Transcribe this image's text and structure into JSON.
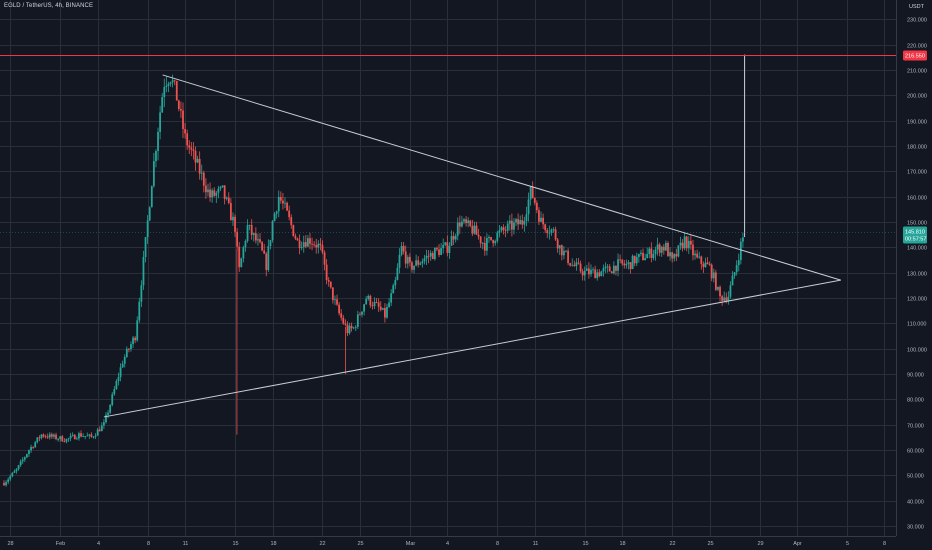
{
  "header": {
    "symbol": "EGLD / TetherUS, 4h, BINANCE",
    "currency": "USDT"
  },
  "chart_data": {
    "type": "candlestick",
    "symbol": "EGLD / TetherUS",
    "interval": "4h",
    "exchange": "BINANCE",
    "currency": "USDT",
    "ylim": [
      26,
      236
    ],
    "y_ticks": [
      230,
      220,
      210,
      200,
      190,
      180,
      170,
      160,
      150,
      140,
      130,
      120,
      110,
      100,
      90,
      80,
      70,
      60,
      50,
      40,
      30
    ],
    "x_range": [
      -0.5,
      67
    ],
    "x_ticks": [
      {
        "label": "28",
        "t": 0
      },
      {
        "label": "Feb",
        "t": 4
      },
      {
        "label": "4",
        "t": 7
      },
      {
        "label": "8",
        "t": 11
      },
      {
        "label": "11",
        "t": 14
      },
      {
        "label": "15",
        "t": 18
      },
      {
        "label": "18",
        "t": 21
      },
      {
        "label": "22",
        "t": 25
      },
      {
        "label": "25",
        "t": 28
      },
      {
        "label": "Mar",
        "t": 32
      },
      {
        "label": "4",
        "t": 35
      },
      {
        "label": "8",
        "t": 39
      },
      {
        "label": "11",
        "t": 42
      },
      {
        "label": "15",
        "t": 46
      },
      {
        "label": "18",
        "t": 49
      },
      {
        "label": "22",
        "t": 53
      },
      {
        "label": "25",
        "t": 56
      },
      {
        "label": "29",
        "t": 60
      },
      {
        "label": "Apr",
        "t": 63
      },
      {
        "label": "5",
        "t": 67
      },
      {
        "label": "8",
        "t": 70
      }
    ],
    "candle_keypoints": [
      [
        -0.5,
        47
      ],
      [
        0.5,
        52
      ],
      [
        1.5,
        60
      ],
      [
        2.5,
        66
      ],
      [
        3.5,
        65
      ],
      [
        4.5,
        64
      ],
      [
        5.5,
        66
      ],
      [
        6.5,
        65
      ],
      [
        7.5,
        70
      ],
      [
        8.0,
        78
      ],
      [
        9.0,
        95
      ],
      [
        10.0,
        105
      ],
      [
        10.8,
        140
      ],
      [
        11.3,
        165
      ],
      [
        11.9,
        190
      ],
      [
        12.3,
        205
      ],
      [
        12.8,
        208
      ],
      [
        13.3,
        200
      ],
      [
        14.0,
        183
      ],
      [
        15.0,
        172
      ],
      [
        16.0,
        160
      ],
      [
        17.0,
        162
      ],
      [
        18.0,
        148
      ],
      [
        18.3,
        130
      ],
      [
        19.0,
        148
      ],
      [
        20.0,
        140
      ],
      [
        20.5,
        133
      ],
      [
        21.0,
        150
      ],
      [
        21.5,
        160
      ],
      [
        22.0,
        155
      ],
      [
        23.0,
        142
      ],
      [
        24.0,
        143
      ],
      [
        24.8,
        140
      ],
      [
        25.5,
        125
      ],
      [
        26.3,
        114
      ],
      [
        27.0,
        107
      ],
      [
        27.5,
        108
      ],
      [
        28.5,
        120
      ],
      [
        29.5,
        116
      ],
      [
        30.0,
        113
      ],
      [
        30.8,
        125
      ],
      [
        31.3,
        140
      ],
      [
        32.0,
        132
      ],
      [
        33.0,
        135
      ],
      [
        34.0,
        138
      ],
      [
        35.0,
        140
      ],
      [
        36.0,
        150
      ],
      [
        37.0,
        147
      ],
      [
        38.0,
        141
      ],
      [
        39.0,
        145
      ],
      [
        40.0,
        148
      ],
      [
        41.0,
        150
      ],
      [
        41.7,
        162
      ],
      [
        42.0,
        158
      ],
      [
        42.5,
        150
      ],
      [
        43.5,
        146
      ],
      [
        44.0,
        140
      ],
      [
        45.0,
        133
      ],
      [
        46.0,
        130
      ],
      [
        47.0,
        130
      ],
      [
        48.0,
        131
      ],
      [
        48.5,
        133
      ],
      [
        49.5,
        133
      ],
      [
        50.0,
        135
      ],
      [
        51.0,
        137
      ],
      [
        52.0,
        140
      ],
      [
        52.5,
        140
      ],
      [
        53.0,
        134
      ],
      [
        54.0,
        143
      ],
      [
        55.0,
        135
      ],
      [
        56.0,
        132
      ],
      [
        56.4,
        127
      ],
      [
        56.8,
        120
      ],
      [
        57.5,
        121
      ],
      [
        58.0,
        130
      ],
      [
        58.6,
        143
      ],
      [
        58.8,
        145
      ]
    ],
    "candle_spikes": [
      {
        "t": 18.15,
        "low": 66
      },
      {
        "t": 26.85,
        "low": 90
      },
      {
        "t": 58.8,
        "high": 216
      }
    ],
    "trendlines": [
      {
        "name": "triangle-upper",
        "from": [
          12.2,
          208
        ],
        "to": [
          66.5,
          127
        ]
      },
      {
        "name": "triangle-lower",
        "from": [
          7.5,
          73
        ],
        "to": [
          66.5,
          127
        ]
      }
    ],
    "horizontal_line": {
      "value": 216,
      "label": "216.550",
      "color": "#f23645"
    },
    "vertical_marker": {
      "t": 58.8,
      "from": 144,
      "to": 216
    },
    "current_price": {
      "label": "145.810",
      "value": 146,
      "color": "#26a69a"
    },
    "countdown": {
      "label": "00:57:57"
    },
    "colors": {
      "up": "#26a69a",
      "down": "#ef5350",
      "grid": "#2a2e39",
      "trendline": "#c8ccd6",
      "background": "#131722"
    }
  }
}
